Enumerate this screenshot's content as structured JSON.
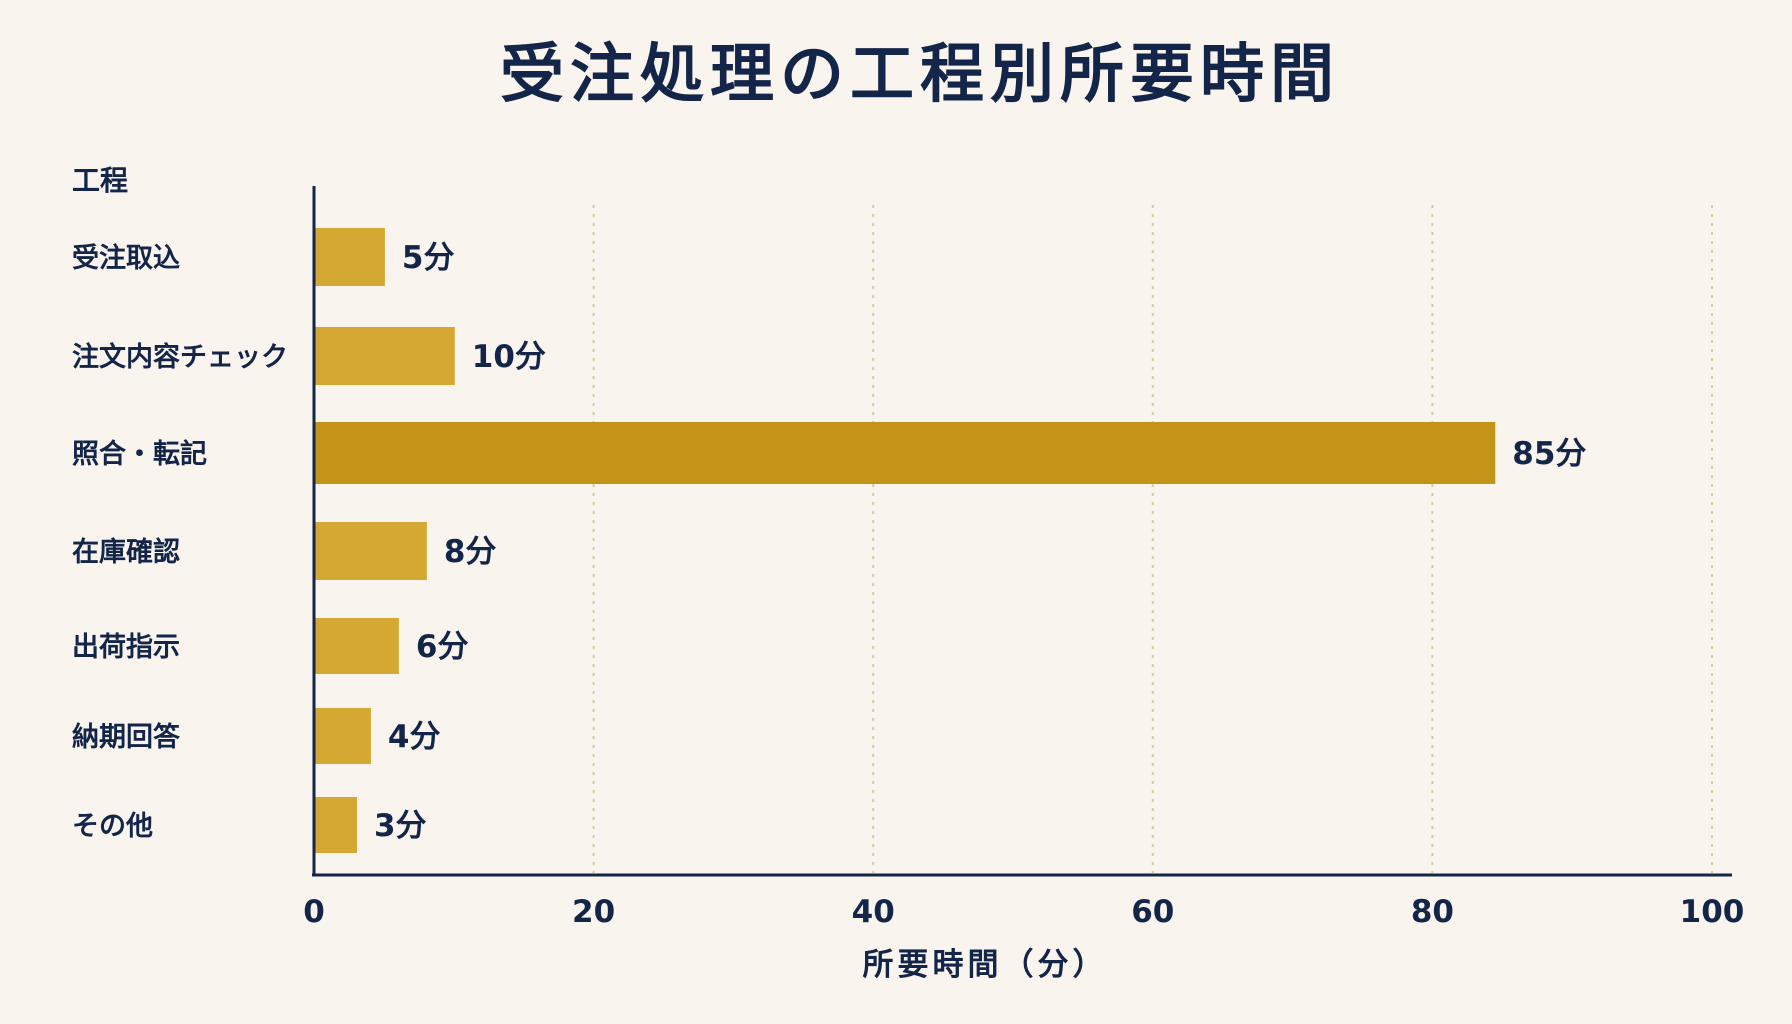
{
  "chart_data": {
    "type": "bar",
    "orientation": "horizontal",
    "title": "受注処理の工程別所要時間",
    "ylabel": "工程",
    "xlabel": "所要時間（分）",
    "categories": [
      "受注取込",
      "注文内容チェック",
      "照合・転記",
      "在庫確認",
      "出荷指示",
      "納期回答",
      "その他"
    ],
    "values": [
      5,
      10,
      85,
      8,
      6,
      4,
      3
    ],
    "value_labels": [
      "5分",
      "10分",
      "85分",
      "8分",
      "6分",
      "4分",
      "3分"
    ],
    "xlim": [
      0,
      100
    ],
    "xticks": [
      "0",
      "20",
      "40",
      "60",
      "80",
      "100"
    ],
    "tick_values": [
      0,
      20,
      40,
      60,
      80,
      100
    ],
    "grid": "vertical dotted",
    "highlight_index": 2,
    "colors": {
      "background": "#f9f5ee",
      "bar": "#d4a833",
      "bar_highlight": "#c49418",
      "text": "#14254a",
      "grid": "#d9c9a0"
    }
  }
}
